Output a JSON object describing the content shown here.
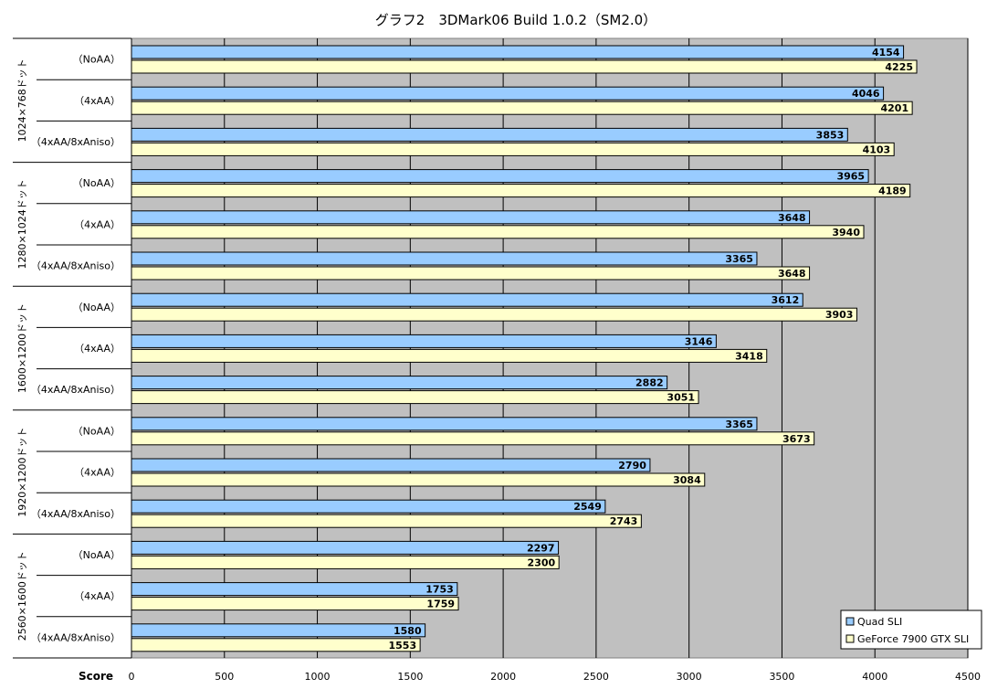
{
  "chart_data": {
    "type": "bar",
    "orientation": "horizontal",
    "title": "グラフ2　3DMark06 Build 1.0.2（SM2.0）",
    "xlabel": "Score",
    "xlim": [
      0,
      4500
    ],
    "xticks": [
      0,
      500,
      1000,
      1500,
      2000,
      2500,
      3000,
      3500,
      4000,
      4500
    ],
    "grid": true,
    "legend_position": "bottom-right",
    "colors": {
      "plot_bg": "#c0c0c0",
      "series": [
        "#99ccff",
        "#ffffcc"
      ]
    },
    "groups": [
      {
        "label": "1024×768ドット",
        "categories": [
          "（NoAA）",
          "（4xAA）",
          "（4xAA/8xAniso）"
        ],
        "series_values": [
          [
            4154,
            4046,
            3853
          ],
          [
            4225,
            4201,
            4103
          ]
        ]
      },
      {
        "label": "1280×1024ドット",
        "categories": [
          "（NoAA）",
          "（4xAA）",
          "（4xAA/8xAniso）"
        ],
        "series_values": [
          [
            3965,
            3648,
            3365
          ],
          [
            4189,
            3940,
            3648
          ]
        ]
      },
      {
        "label": "1600×1200ドット",
        "categories": [
          "（NoAA）",
          "（4xAA）",
          "（4xAA/8xAniso）"
        ],
        "series_values": [
          [
            3612,
            3146,
            2882
          ],
          [
            3903,
            3418,
            3051
          ]
        ]
      },
      {
        "label": "1920×1200ドット",
        "categories": [
          "（NoAA）",
          "（4xAA）",
          "（4xAA/8xAniso）"
        ],
        "series_values": [
          [
            3365,
            2790,
            2549
          ],
          [
            3673,
            3084,
            2743
          ]
        ]
      },
      {
        "label": "2560×1600ドット",
        "categories": [
          "（NoAA）",
          "（4xAA）",
          "（4xAA/8xAniso）"
        ],
        "series_values": [
          [
            2297,
            1753,
            1580
          ],
          [
            2300,
            1759,
            1553
          ]
        ]
      }
    ],
    "series": [
      {
        "name": "Quad SLI"
      },
      {
        "name": "GeForce 7900 GTX SLI"
      }
    ]
  }
}
